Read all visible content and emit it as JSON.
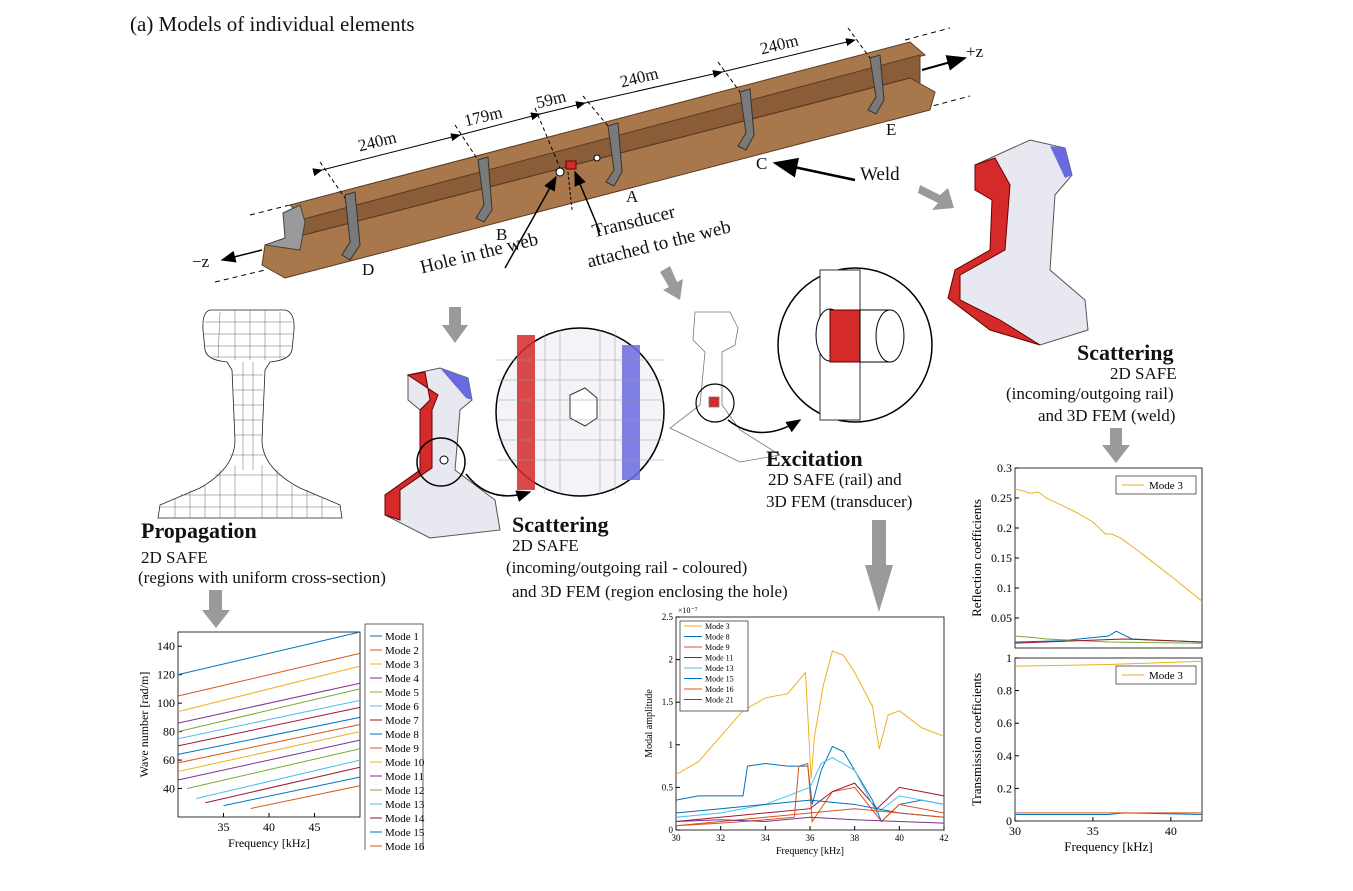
{
  "figure_title": "(a) Models of individual elements",
  "rail": {
    "dimensions": [
      "240m",
      "179m",
      "59m",
      "240m",
      "240m"
    ],
    "points": [
      "D",
      "B",
      "A",
      "C",
      "E"
    ],
    "axis_plus": "+z",
    "axis_minus": "−z",
    "weld_label": "Weld",
    "hole_label": "Hole in the web",
    "transducer_label_line1": "Transducer",
    "transducer_label_line2": "attached to the web"
  },
  "propagation": {
    "title": "Propagation",
    "line1": "2D SAFE",
    "line2": "(regions with uniform cross-section)"
  },
  "scattering_hole": {
    "title": "Scattering",
    "line1": "2D SAFE",
    "line2": "(incoming/outgoing rail - coloured)",
    "line3": "and 3D FEM (region enclosing the hole)"
  },
  "excitation": {
    "title": "Excitation",
    "line1": "2D SAFE (rail) and",
    "line2": "3D FEM (transducer)"
  },
  "scattering_weld": {
    "title": "Scattering",
    "line1": "2D SAFE",
    "line2": "(incoming/outgoing rail)",
    "line3": "and 3D FEM (weld)"
  },
  "colors": {
    "rail_brown": "#a9774c",
    "rail_dark": "#7b5232",
    "weld_grey": "#808080",
    "mesh_red": "#d42a2a",
    "mesh_blue": "#5a5ad8",
    "arrow_grey": "#9a9a9a"
  },
  "chart_data": [
    {
      "type": "line",
      "id": "dispersion",
      "xlabel": "Frequency [kHz]",
      "ylabel": "Wave number [rad/m]",
      "xlim": [
        30,
        50
      ],
      "ylim": [
        20,
        150
      ],
      "xticks": [
        35,
        40,
        45
      ],
      "yticks": [
        40,
        60,
        80,
        100,
        120,
        140
      ],
      "legend_position": "outside-right",
      "series": [
        {
          "name": "Mode 1",
          "color": "#0072bd",
          "x": [
            30,
            50
          ],
          "y": [
            120,
            150
          ]
        },
        {
          "name": "Mode 2",
          "color": "#d95319",
          "x": [
            30,
            50
          ],
          "y": [
            105,
            135
          ]
        },
        {
          "name": "Mode 3",
          "color": "#edb120",
          "x": [
            30,
            50
          ],
          "y": [
            94,
            126
          ]
        },
        {
          "name": "Mode 4",
          "color": "#7e2f8e",
          "x": [
            30,
            50
          ],
          "y": [
            86,
            114
          ]
        },
        {
          "name": "Mode 5",
          "color": "#77ac30",
          "x": [
            30,
            50
          ],
          "y": [
            80,
            110
          ]
        },
        {
          "name": "Mode 6",
          "color": "#4dbeee",
          "x": [
            30,
            50
          ],
          "y": [
            75,
            102
          ]
        },
        {
          "name": "Mode 7",
          "color": "#a2142f",
          "x": [
            30,
            50
          ],
          "y": [
            70,
            97
          ]
        },
        {
          "name": "Mode 8",
          "color": "#0072bd",
          "x": [
            30,
            50
          ],
          "y": [
            64,
            90
          ]
        },
        {
          "name": "Mode 9",
          "color": "#d95319",
          "x": [
            30,
            50
          ],
          "y": [
            58,
            85
          ]
        },
        {
          "name": "Mode 10",
          "color": "#edb120",
          "x": [
            30,
            50
          ],
          "y": [
            52,
            80
          ]
        },
        {
          "name": "Mode 11",
          "color": "#7e2f8e",
          "x": [
            30,
            50
          ],
          "y": [
            46,
            74
          ]
        },
        {
          "name": "Mode 12",
          "color": "#77ac30",
          "x": [
            31,
            50
          ],
          "y": [
            40,
            68
          ]
        },
        {
          "name": "Mode 13",
          "color": "#4dbeee",
          "x": [
            32,
            50
          ],
          "y": [
            33,
            60
          ]
        },
        {
          "name": "Mode 14",
          "color": "#a2142f",
          "x": [
            33,
            50
          ],
          "y": [
            30,
            55
          ]
        },
        {
          "name": "Mode 15",
          "color": "#0072bd",
          "x": [
            35,
            50
          ],
          "y": [
            28,
            48
          ]
        },
        {
          "name": "Mode 16",
          "color": "#d95319",
          "x": [
            38,
            50
          ],
          "y": [
            26,
            42
          ]
        }
      ]
    },
    {
      "type": "line",
      "id": "modal_amplitude",
      "xlabel": "Frequency [kHz]",
      "ylabel": "Modal amplitude",
      "exponent_label": "×10⁻⁷",
      "xlim": [
        30,
        42
      ],
      "ylim": [
        0,
        2.5
      ],
      "xticks": [
        30,
        32,
        34,
        36,
        38,
        40,
        42
      ],
      "yticks": [
        0,
        0.5,
        1,
        1.5,
        2,
        2.5
      ],
      "legend_position": "top-left",
      "series": [
        {
          "name": "Mode 3",
          "color": "#edb120",
          "x": [
            30,
            31,
            32,
            33,
            34,
            35,
            35.8,
            36.05,
            36.2,
            36.6,
            37,
            37.5,
            38,
            38.8,
            39.1,
            39.5,
            40,
            41,
            42
          ],
          "y": [
            0.65,
            0.8,
            1.1,
            1.4,
            1.55,
            1.6,
            1.85,
            0.6,
            1.1,
            1.7,
            2.1,
            2.05,
            1.85,
            1.45,
            0.95,
            1.35,
            1.4,
            1.2,
            1.1
          ]
        },
        {
          "name": "Mode 8",
          "color": "#0072bd",
          "x": [
            30,
            31,
            32,
            33,
            33.2,
            34,
            35,
            35.9,
            36.1,
            36.5,
            37,
            37.5,
            38,
            38.8,
            39.2,
            40,
            41,
            42
          ],
          "y": [
            0.35,
            0.4,
            0.4,
            0.4,
            0.75,
            0.78,
            0.75,
            0.75,
            0.3,
            0.7,
            0.98,
            0.92,
            0.7,
            0.35,
            0.1,
            0.3,
            0.35,
            0.3
          ]
        },
        {
          "name": "Mode 9",
          "color": "#d95319",
          "x": [
            30,
            32,
            34,
            35.3,
            35.5,
            35.9,
            36.1,
            37,
            38,
            39.2,
            40,
            41,
            42
          ],
          "y": [
            0.05,
            0.08,
            0.12,
            0.15,
            0.75,
            0.78,
            0.1,
            0.45,
            0.5,
            0.1,
            0.3,
            0.25,
            0.2
          ]
        },
        {
          "name": "Mode 11",
          "color": "#a2142f",
          "x": [
            30,
            32,
            34,
            36,
            37,
            38,
            39,
            40,
            41,
            42
          ],
          "y": [
            0.1,
            0.15,
            0.2,
            0.25,
            0.45,
            0.55,
            0.25,
            0.5,
            0.45,
            0.4
          ]
        },
        {
          "name": "Mode 13",
          "color": "#4dbeee",
          "x": [
            30,
            32,
            34,
            36,
            36.5,
            37,
            38,
            39,
            40,
            41,
            42
          ],
          "y": [
            0.15,
            0.2,
            0.3,
            0.5,
            0.78,
            0.85,
            0.7,
            0.2,
            0.4,
            0.35,
            0.3
          ]
        },
        {
          "name": "Mode 15",
          "color": "#0072bd",
          "x": [
            30,
            32,
            34,
            36,
            38,
            40,
            42
          ],
          "y": [
            0.2,
            0.25,
            0.3,
            0.35,
            0.3,
            0.2,
            0.15
          ]
        },
        {
          "name": "Mode 16",
          "color": "#d95319",
          "x": [
            30,
            32,
            34,
            36,
            38,
            40,
            42
          ],
          "y": [
            0.05,
            0.1,
            0.15,
            0.2,
            0.25,
            0.2,
            0.15
          ]
        },
        {
          "name": "Mode 21",
          "color": "#7e2f8e",
          "x": [
            30,
            32,
            34,
            36,
            38,
            40,
            42
          ],
          "y": [
            0.1,
            0.12,
            0.1,
            0.15,
            0.12,
            0.1,
            0.08
          ]
        }
      ]
    },
    {
      "type": "line",
      "id": "reflection",
      "xlabel": "",
      "ylabel": "Reflection coefficients",
      "xlim": [
        30,
        42
      ],
      "ylim": [
        0,
        0.3
      ],
      "yticks": [
        0.05,
        0.1,
        0.15,
        0.2,
        0.25,
        0.3
      ],
      "legend_position": "top-right",
      "series": [
        {
          "name": "Mode 3",
          "color": "#edb120",
          "x": [
            30,
            30.5,
            31,
            31.5,
            32,
            33,
            34,
            35,
            35.8,
            36.2,
            36.8,
            38,
            40,
            42
          ],
          "y": [
            0.265,
            0.262,
            0.258,
            0.26,
            0.25,
            0.238,
            0.225,
            0.21,
            0.19,
            0.19,
            0.183,
            0.16,
            0.12,
            0.078
          ]
        },
        {
          "series_role": "minor",
          "color": "#0072bd",
          "x": [
            30,
            33,
            36,
            36.5,
            37.5,
            42
          ],
          "y": [
            0.01,
            0.012,
            0.02,
            0.028,
            0.015,
            0.01
          ]
        },
        {
          "series_role": "minor",
          "color": "#77ac30",
          "x": [
            30,
            31,
            32,
            36,
            42
          ],
          "y": [
            0.02,
            0.018,
            0.015,
            0.01,
            0.008
          ]
        },
        {
          "series_role": "minor",
          "color": "#a2142f",
          "x": [
            30,
            34,
            37,
            42
          ],
          "y": [
            0.008,
            0.012,
            0.015,
            0.01
          ]
        }
      ]
    },
    {
      "type": "line",
      "id": "transmission",
      "xlabel": "Frequency [kHz]",
      "ylabel": "Transmission coefficients",
      "xlim": [
        30,
        42
      ],
      "ylim": [
        0,
        1
      ],
      "xticks": [
        30,
        35,
        40
      ],
      "yticks": [
        0,
        0.2,
        0.4,
        0.6,
        0.8,
        1
      ],
      "legend_position": "top-right",
      "series": [
        {
          "name": "Mode 3",
          "color": "#edb120",
          "x": [
            30,
            33,
            36,
            39,
            42
          ],
          "y": [
            0.95,
            0.955,
            0.96,
            0.97,
            0.98
          ]
        },
        {
          "series_role": "minor",
          "color": "#0072bd",
          "x": [
            30,
            36,
            37,
            42
          ],
          "y": [
            0.04,
            0.04,
            0.05,
            0.04
          ]
        },
        {
          "series_role": "minor",
          "color": "#d95319",
          "x": [
            30,
            36,
            42
          ],
          "y": [
            0.05,
            0.05,
            0.05
          ]
        }
      ]
    }
  ]
}
